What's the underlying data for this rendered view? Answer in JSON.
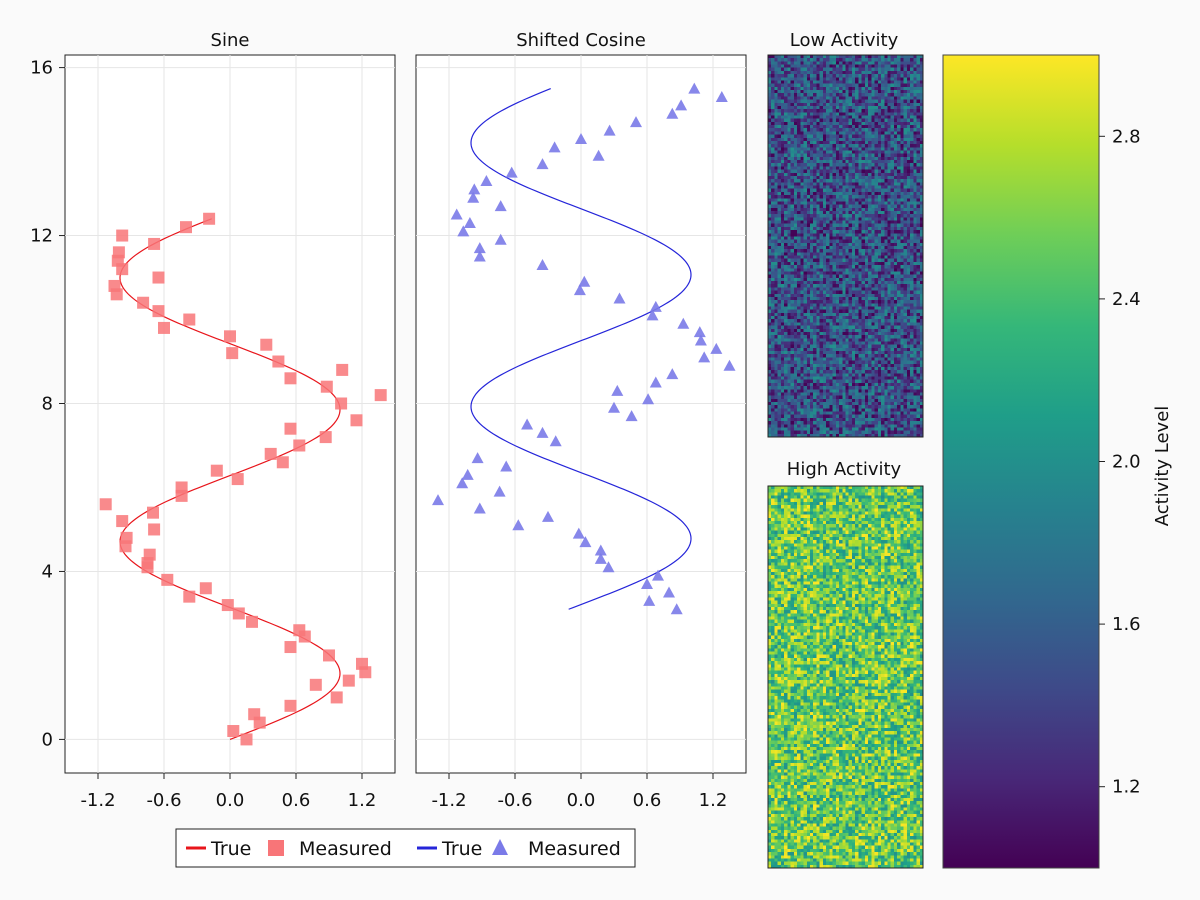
{
  "chart_data": [
    {
      "type": "line+scatter",
      "title": "Sine",
      "xlim": [
        -1.5,
        1.5
      ],
      "ylim": [
        -0.8,
        16.3
      ],
      "xticks": [
        "-1.2",
        "-0.6",
        "0.0",
        "0.6",
        "1.2"
      ],
      "yticks": [
        "0",
        "4",
        "8",
        "12",
        "16"
      ],
      "series": [
        {
          "kind": "line",
          "color": "#e8151b",
          "curve": "x = sin(y)",
          "yrange": [
            0,
            12.4
          ]
        },
        {
          "kind": "scatter",
          "marker": "square",
          "color": "#f87578",
          "points": [
            [
              0.15,
              0.0
            ],
            [
              0.03,
              0.2
            ],
            [
              0.27,
              0.4
            ],
            [
              0.22,
              0.6
            ],
            [
              0.97,
              1.0
            ],
            [
              0.55,
              0.8
            ],
            [
              0.78,
              1.3
            ],
            [
              1.08,
              1.4
            ],
            [
              1.23,
              1.6
            ],
            [
              1.2,
              1.8
            ],
            [
              0.9,
              2.0
            ],
            [
              0.55,
              2.2
            ],
            [
              0.68,
              2.45
            ],
            [
              0.63,
              2.6
            ],
            [
              0.2,
              2.8
            ],
            [
              0.08,
              3.0
            ],
            [
              -0.02,
              3.2
            ],
            [
              -0.37,
              3.4
            ],
            [
              -0.22,
              3.6
            ],
            [
              -0.57,
              3.8
            ],
            [
              -0.75,
              4.1
            ],
            [
              -0.75,
              4.2
            ],
            [
              -0.73,
              4.4
            ],
            [
              -0.95,
              4.6
            ],
            [
              -0.94,
              4.8
            ],
            [
              -0.69,
              5.0
            ],
            [
              -0.98,
              5.2
            ],
            [
              -0.7,
              5.4
            ],
            [
              -1.13,
              5.6
            ],
            [
              -0.44,
              5.8
            ],
            [
              -0.44,
              6.0
            ],
            [
              0.07,
              6.2
            ],
            [
              -0.12,
              6.4
            ],
            [
              0.48,
              6.6
            ],
            [
              0.63,
              7.0
            ],
            [
              0.37,
              6.8
            ],
            [
              0.87,
              7.2
            ],
            [
              0.55,
              7.4
            ],
            [
              1.15,
              7.6
            ],
            [
              1.01,
              8.0
            ],
            [
              1.37,
              8.2
            ],
            [
              0.88,
              8.4
            ],
            [
              0.55,
              8.6
            ],
            [
              1.02,
              8.8
            ],
            [
              0.44,
              9.0
            ],
            [
              0.02,
              9.2
            ],
            [
              0.33,
              9.4
            ],
            [
              0.0,
              9.6
            ],
            [
              -0.6,
              9.8
            ],
            [
              -0.37,
              10.0
            ],
            [
              -0.65,
              10.2
            ],
            [
              -0.79,
              10.4
            ],
            [
              -1.03,
              10.6
            ],
            [
              -1.05,
              10.8
            ],
            [
              -0.65,
              11.0
            ],
            [
              -0.98,
              11.2
            ],
            [
              -1.02,
              11.4
            ],
            [
              -1.01,
              11.6
            ],
            [
              -0.69,
              11.8
            ],
            [
              -0.98,
              12.0
            ],
            [
              -0.4,
              12.2
            ],
            [
              -0.19,
              12.4
            ]
          ]
        }
      ]
    },
    {
      "type": "line+scatter",
      "title": "Shifted Cosine",
      "xlim": [
        -1.5,
        1.5
      ],
      "ylim": [
        -0.8,
        16.3
      ],
      "xticks": [
        "-1.2",
        "-0.6",
        "0.0",
        "0.6",
        "1.2"
      ],
      "series": [
        {
          "kind": "line",
          "color": "#2525d9",
          "curve": "x = cos(y + 1.5)",
          "yrange": [
            3.1,
            15.5
          ]
        },
        {
          "kind": "scatter",
          "marker": "triangle",
          "color": "#7a7ae8",
          "points": [
            [
              0.87,
              3.1
            ],
            [
              0.62,
              3.3
            ],
            [
              0.8,
              3.5
            ],
            [
              0.6,
              3.7
            ],
            [
              0.7,
              3.9
            ],
            [
              0.25,
              4.1
            ],
            [
              0.18,
              4.3
            ],
            [
              0.18,
              4.5
            ],
            [
              0.04,
              4.7
            ],
            [
              -0.02,
              4.9
            ],
            [
              -0.3,
              5.3
            ],
            [
              -0.57,
              5.1
            ],
            [
              -0.92,
              5.5
            ],
            [
              -1.3,
              5.7
            ],
            [
              -0.74,
              5.9
            ],
            [
              -1.08,
              6.1
            ],
            [
              -1.03,
              6.3
            ],
            [
              -0.68,
              6.5
            ],
            [
              -0.94,
              6.7
            ],
            [
              -0.23,
              7.1
            ],
            [
              -0.35,
              7.3
            ],
            [
              -0.49,
              7.5
            ],
            [
              0.46,
              7.7
            ],
            [
              0.3,
              7.9
            ],
            [
              0.61,
              8.1
            ],
            [
              0.33,
              8.3
            ],
            [
              0.68,
              8.5
            ],
            [
              0.83,
              8.7
            ],
            [
              1.35,
              8.9
            ],
            [
              1.12,
              9.1
            ],
            [
              1.23,
              9.3
            ],
            [
              1.09,
              9.5
            ],
            [
              1.08,
              9.7
            ],
            [
              0.93,
              9.9
            ],
            [
              0.65,
              10.1
            ],
            [
              0.68,
              10.3
            ],
            [
              0.35,
              10.5
            ],
            [
              -0.01,
              10.7
            ],
            [
              0.03,
              10.9
            ],
            [
              -0.35,
              11.3
            ],
            [
              -0.92,
              11.5
            ],
            [
              -0.92,
              11.7
            ],
            [
              -0.73,
              11.9
            ],
            [
              -1.07,
              12.1
            ],
            [
              -1.01,
              12.3
            ],
            [
              -1.13,
              12.5
            ],
            [
              -0.73,
              12.7
            ],
            [
              -0.98,
              12.9
            ],
            [
              -0.97,
              13.1
            ],
            [
              -0.86,
              13.3
            ],
            [
              -0.63,
              13.5
            ],
            [
              -0.35,
              13.7
            ],
            [
              -0.24,
              14.1
            ],
            [
              0.16,
              13.9
            ],
            [
              0.0,
              14.3
            ],
            [
              0.26,
              14.5
            ],
            [
              0.5,
              14.7
            ],
            [
              0.83,
              14.9
            ],
            [
              0.91,
              15.1
            ],
            [
              1.28,
              15.3
            ],
            [
              1.03,
              15.5
            ]
          ]
        }
      ]
    },
    {
      "type": "heatmap",
      "title": "Low Activity",
      "value_range": [
        1.0,
        2.0
      ],
      "cols": 48,
      "rows": 120
    },
    {
      "type": "heatmap",
      "title": "High Activity",
      "value_range": [
        2.0,
        3.0
      ],
      "cols": 48,
      "rows": 120
    },
    {
      "type": "colorbar",
      "label": "Activity Level",
      "range": [
        1.0,
        3.0
      ],
      "ticks": [
        "1.2",
        "1.6",
        "2.0",
        "2.4",
        "2.8"
      ],
      "colormap": "viridis"
    }
  ],
  "legend": {
    "entries": [
      {
        "label": "True",
        "kind": "line",
        "color": "#e8151b"
      },
      {
        "label": "Measured",
        "kind": "square",
        "color": "#f87578"
      },
      {
        "label": "True",
        "kind": "line",
        "color": "#2525d9"
      },
      {
        "label": "Measured",
        "kind": "triangle",
        "color": "#7a7ae8"
      }
    ]
  }
}
